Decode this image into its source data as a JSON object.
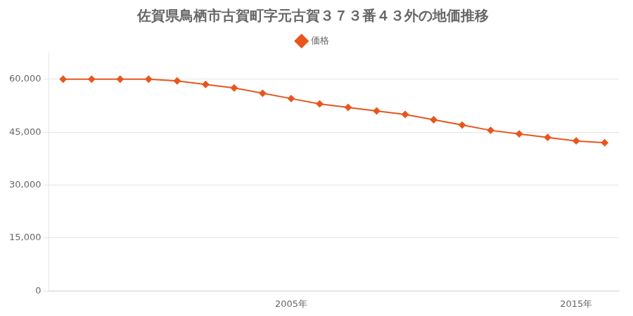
{
  "chart_data": {
    "type": "line",
    "title": "佐賀県鳥栖市古賀町字元古賀３７３番４３外の地価推移",
    "x": [
      1997,
      1998,
      1999,
      2000,
      2001,
      2002,
      2003,
      2004,
      2005,
      2006,
      2007,
      2008,
      2009,
      2010,
      2011,
      2012,
      2013,
      2014,
      2015,
      2016
    ],
    "series": [
      {
        "name": "価格",
        "color": "#e8561e",
        "marker": "diamond",
        "values": [
          60000,
          60000,
          60000,
          60000,
          59500,
          58500,
          57500,
          56000,
          54500,
          53000,
          52000,
          51000,
          50000,
          48500,
          47000,
          45500,
          44500,
          43500,
          42500,
          42000
        ]
      }
    ],
    "xlim": [
      1996.5,
      2016.5
    ],
    "xticks": [
      {
        "value": 2005,
        "label": "2005年"
      },
      {
        "value": 2015,
        "label": "2015年"
      }
    ],
    "ylim": [
      0,
      67500
    ],
    "yticks": [
      0,
      {
        "value": 15000,
        "label": "15,000"
      },
      {
        "value": 30000,
        "label": "30,000"
      },
      {
        "value": 45000,
        "label": "45,000"
      },
      {
        "value": 60000,
        "label": "60,000"
      }
    ],
    "grid": "y",
    "legend": "top"
  }
}
